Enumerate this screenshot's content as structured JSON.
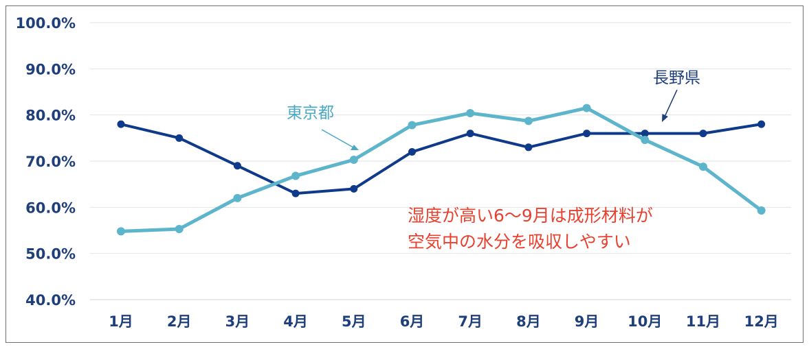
{
  "chart_data": {
    "type": "line",
    "categories": [
      "1月",
      "2月",
      "3月",
      "4月",
      "5月",
      "6月",
      "7月",
      "8月",
      "9月",
      "10月",
      "11月",
      "12月"
    ],
    "series": [
      {
        "name": "長野県",
        "color": "#0f3a8a",
        "values": [
          78,
          75,
          69,
          63,
          64,
          72,
          76,
          73,
          76,
          76,
          76,
          78
        ]
      },
      {
        "name": "東京都",
        "color": "#5db5cc",
        "values": [
          54.8,
          55.3,
          62,
          66.8,
          70.3,
          77.8,
          80.4,
          78.7,
          81.5,
          74.6,
          68.8,
          59.3
        ]
      }
    ],
    "y_ticks": [
      "40.0%",
      "50.0%",
      "60.0%",
      "70.0%",
      "80.0%",
      "90.0%",
      "100.0%"
    ],
    "ylim": [
      40,
      100
    ],
    "grid": true,
    "annotations": {
      "nagano_label": "長野県",
      "tokyo_label": "東京都",
      "note_line1": "湿度が高い6〜9月は成形材料が",
      "note_line2": "空気中の水分を吸収しやすい"
    },
    "colors": {
      "axis_text": "#1f3f7a",
      "grid": "#e2e2e2",
      "note": "#e8412f"
    }
  }
}
